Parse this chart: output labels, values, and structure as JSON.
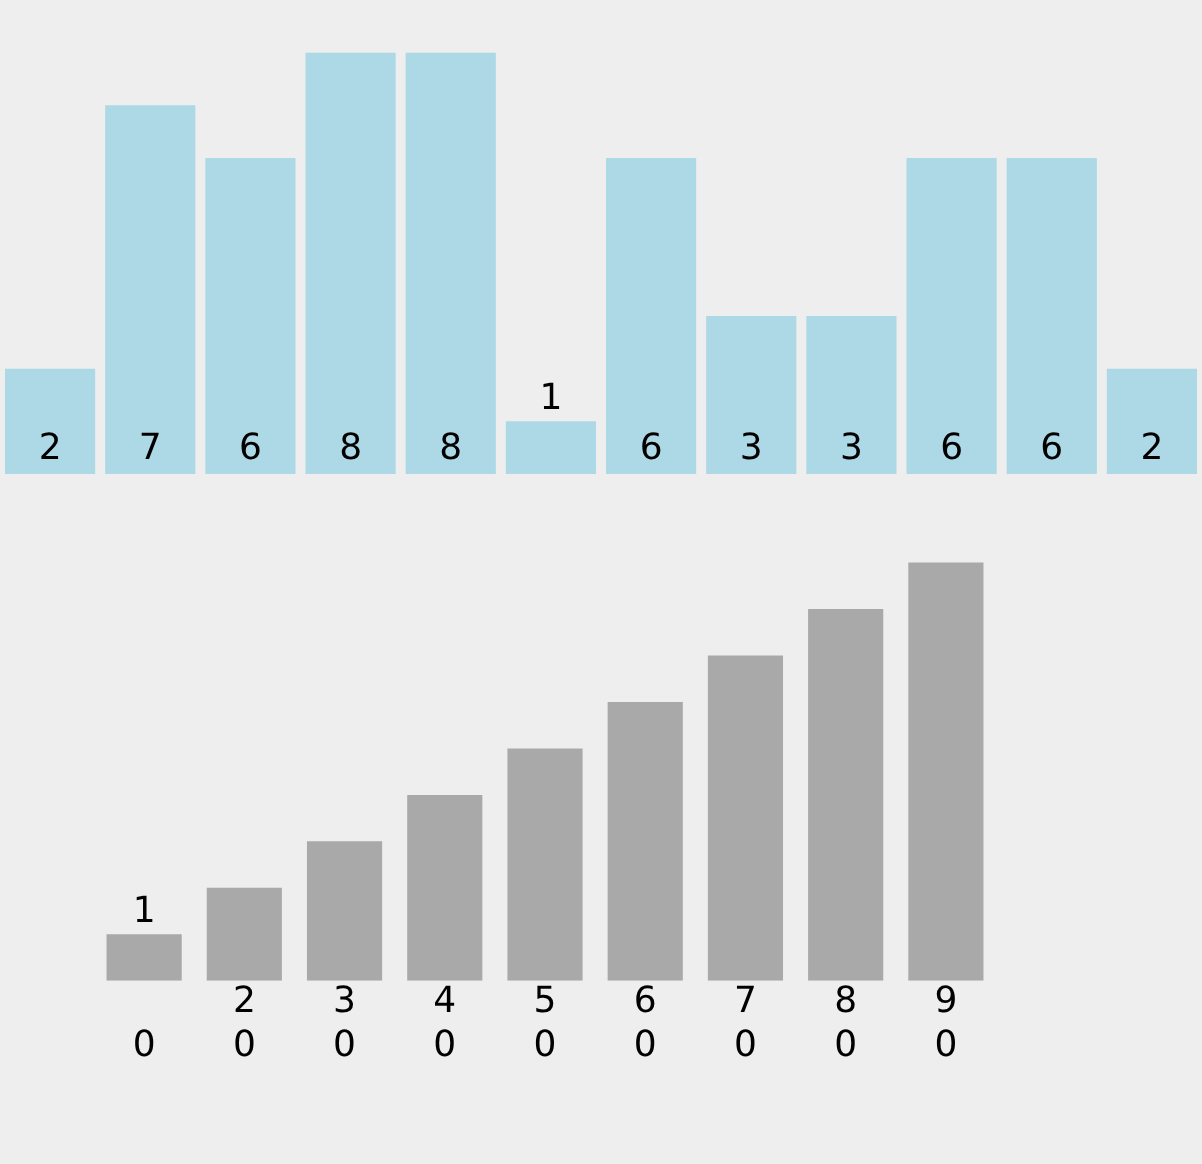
{
  "chart_data": [
    {
      "type": "bar",
      "categories": [
        null,
        null,
        null,
        null,
        null,
        null,
        null,
        null,
        null,
        null,
        null,
        null
      ],
      "values": [
        2,
        7,
        6,
        8,
        8,
        1,
        6,
        3,
        3,
        6,
        6,
        2
      ],
      "color": "#add8e6",
      "data_labels": true,
      "tick_labels": false
    },
    {
      "type": "bar",
      "categories": [
        "0",
        "0",
        "0",
        "0",
        "0",
        "0",
        "0",
        "0",
        "0"
      ],
      "values": [
        1,
        2,
        3,
        4,
        5,
        6,
        7,
        8,
        9
      ],
      "color": "#a9a9a9",
      "data_labels": true,
      "tick_labels": "x"
    }
  ]
}
